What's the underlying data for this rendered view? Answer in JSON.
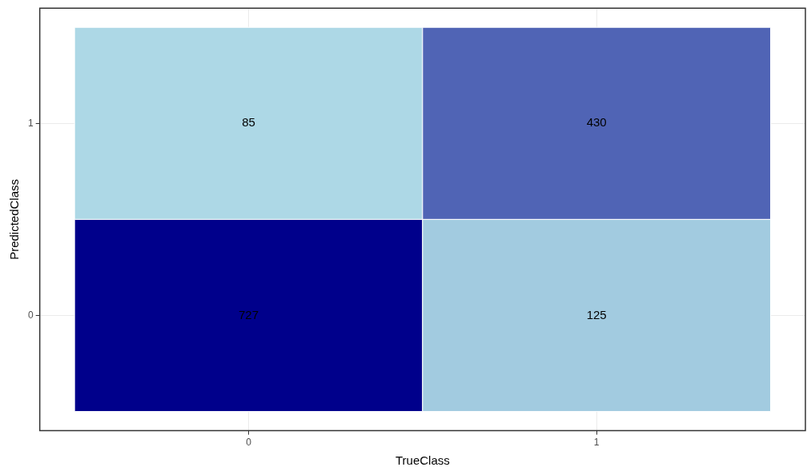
{
  "chart_data": {
    "type": "heatmap",
    "xlabel": "TrueClass",
    "ylabel": "PredictedClass",
    "categories": [
      "0",
      "1"
    ],
    "y_categories": [
      "1",
      "0"
    ],
    "cells": [
      [
        85,
        430
      ],
      [
        727,
        125
      ]
    ],
    "data_labels": true,
    "grid": true
  }
}
